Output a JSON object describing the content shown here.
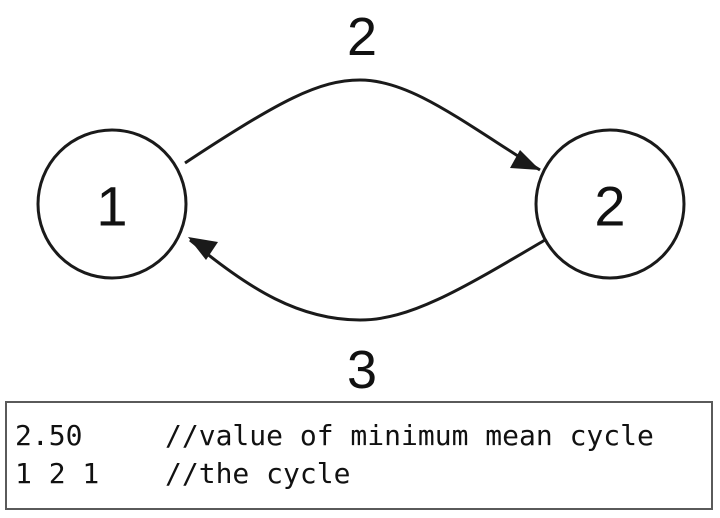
{
  "graph": {
    "nodes": [
      {
        "id": "1",
        "label": "1"
      },
      {
        "id": "2",
        "label": "2"
      }
    ],
    "edges": [
      {
        "from": "1",
        "to": "2",
        "weight": "2"
      },
      {
        "from": "2",
        "to": "1",
        "weight": "3"
      }
    ],
    "colors": {
      "stroke": "#1a1a1a",
      "fill": "#ffffff",
      "text": "#111111"
    }
  },
  "output": {
    "lines": [
      {
        "value": "2.50",
        "comment": "//value of minimum mean cycle"
      },
      {
        "value": "1 2 1",
        "comment": "//the cycle"
      }
    ]
  }
}
